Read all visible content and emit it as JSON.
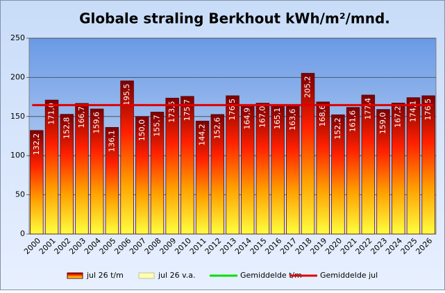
{
  "chart_data": {
    "type": "bar",
    "title": "Globale straling Berkhout kWh/m²/mnd.",
    "categories": [
      "2000",
      "2001",
      "2002",
      "2003",
      "2004",
      "2005",
      "2006",
      "2007",
      "2008",
      "2009",
      "2010",
      "2011",
      "2012",
      "2013",
      "2014",
      "2015",
      "2016",
      "2017",
      "2018",
      "2019",
      "2020",
      "2021",
      "2022",
      "2023",
      "2024",
      "2025",
      "2026"
    ],
    "series": [
      {
        "name": "jul 26 t/m",
        "color": [
          "#7a0000",
          "#ff2000",
          "#ffa000",
          "#ffff40"
        ],
        "values": [
          132.2,
          171.0,
          152.8,
          166.7,
          159.6,
          136.1,
          195.5,
          150.0,
          155.7,
          173.5,
          175.7,
          144.2,
          152.6,
          176.5,
          164.9,
          167.0,
          165.1,
          163.6,
          205.2,
          168.6,
          152.2,
          161.6,
          177.4,
          159.0,
          167.2,
          174.1,
          176.5
        ],
        "value_labels": [
          "132,2",
          "171,0",
          "152,8",
          "166,7",
          "159,6",
          "136,1",
          "195,5",
          "150,0",
          "155,7",
          "173,5",
          "175,7",
          "144,2",
          "152,6",
          "176,5",
          "164,9",
          "167,0",
          "165,1",
          "163,6",
          "205,2",
          "168,6",
          "152,2",
          "161,6",
          "177,4",
          "159,0",
          "167,2",
          "174,1",
          "176,5"
        ]
      },
      {
        "name": "jul 26 v.a.",
        "color": "#ffffb0"
      },
      {
        "name": "Gemiddelde t/m",
        "color": "#00e000"
      },
      {
        "name": "Gemiddelde jul",
        "color": "#e00000",
        "value": 164.6
      }
    ],
    "ylim": [
      0,
      250
    ],
    "yticks": [
      0,
      50,
      100,
      150,
      200,
      250
    ],
    "grid": true
  }
}
